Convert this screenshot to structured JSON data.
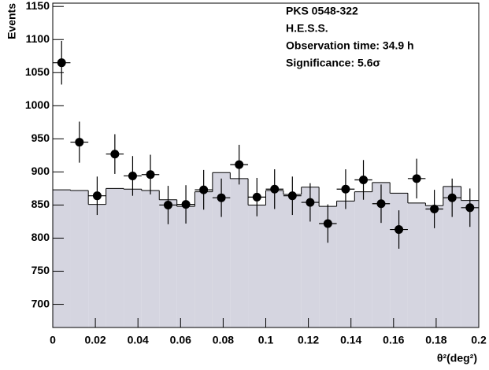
{
  "chart_data": {
    "type": "histogram",
    "annotations": [
      "PKS 0548-322",
      "H.E.S.S.",
      "Observation time: 34.9 h",
      "Significance: 5.6σ"
    ],
    "xlabel": "θ²(deg²)",
    "ylabel": "Events",
    "bins": [
      0,
      0.0083,
      0.0167,
      0.025,
      0.0333,
      0.0417,
      0.05,
      0.0583,
      0.0667,
      0.075,
      0.0833,
      0.0917,
      0.1,
      0.1083,
      0.1167,
      0.125,
      0.1333,
      0.1417,
      0.15,
      0.1583,
      0.1667,
      0.175,
      0.1833,
      0.1917,
      0.2
    ],
    "background": {
      "color": "#d5d5e0",
      "values": [
        873,
        872,
        851,
        875,
        874,
        872,
        858,
        848,
        870,
        899,
        890,
        850,
        872,
        866,
        877,
        848,
        856,
        870,
        884,
        868,
        853,
        849,
        878,
        857
      ]
    },
    "counts": {
      "color": "#000000",
      "values": [
        1065,
        945,
        864,
        927,
        894,
        896,
        850,
        851,
        873,
        861,
        911,
        862,
        874,
        864,
        854,
        822,
        874,
        888,
        852,
        813,
        890,
        844,
        861,
        846
      ],
      "errors": [
        33,
        31,
        29,
        30,
        30,
        30,
        29,
        29,
        30,
        29,
        30,
        29,
        30,
        29,
        29,
        29,
        30,
        30,
        29,
        29,
        30,
        29,
        29,
        29
      ]
    },
    "xlim": [
      0,
      0.2
    ],
    "ylim": [
      665,
      1155
    ],
    "xticks": [
      0,
      0.02,
      0.04,
      0.06,
      0.08,
      0.1,
      0.12,
      0.14,
      0.16,
      0.18,
      0.2
    ],
    "yticks": [
      700,
      750,
      800,
      850,
      900,
      950,
      1000,
      1050,
      1100,
      1150
    ]
  }
}
